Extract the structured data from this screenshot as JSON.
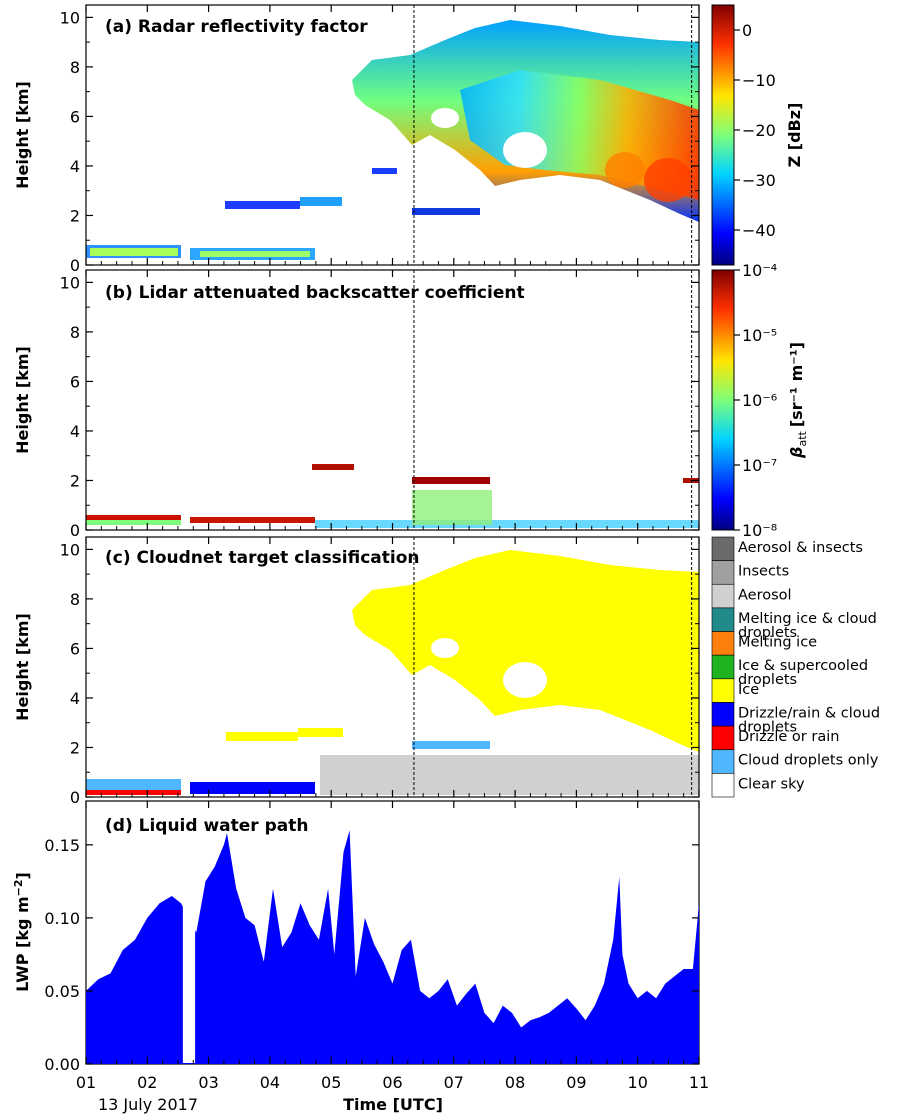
{
  "chart_data": [
    {
      "type": "heatmap",
      "panel_label": "(a) Radar reflectivity factor",
      "ylabel": "Height [km]",
      "ylim": [
        0,
        10.5
      ],
      "yticks": [
        0,
        2,
        4,
        6,
        8,
        10
      ],
      "xlim": [
        1,
        11
      ],
      "colorbar": {
        "label": "Z [dBz]",
        "range": [
          -47,
          5
        ],
        "ticks": [
          0,
          -10,
          -20,
          -30,
          -40
        ],
        "tick_labels": [
          "0",
          "−10",
          "−20",
          "−30",
          "−40"
        ]
      },
      "regions": [
        {
          "name": "low boundary layer cloud",
          "x": [
            1.0,
            3.9
          ],
          "base": 0.3,
          "top": 0.75
        },
        {
          "name": "mid-level cloud",
          "x": [
            2.3,
            4.8
          ],
          "base": 2.0,
          "top": 2.7
        },
        {
          "name": "mid-level cloud",
          "x": [
            6.3,
            7.4
          ],
          "base": 1.9,
          "top": 2.3
        },
        {
          "name": "ice cloud",
          "x": [
            4.75,
            11.0
          ],
          "base": 2.0,
          "top": 9.9
        }
      ]
    },
    {
      "type": "heatmap",
      "panel_label": "(b) Lidar attenuated backscatter coefficient",
      "ylabel": "Height [km]",
      "ylim": [
        0,
        10.5
      ],
      "yticks": [
        0,
        2,
        4,
        6,
        8,
        10
      ],
      "xlim": [
        1,
        11
      ],
      "colorbar": {
        "label_main": "β",
        "label_sub": "att",
        "label_unit": "[sr⁻¹ m⁻¹]",
        "scale": "log",
        "range": [
          1e-08,
          0.0001
        ],
        "tick_labels": [
          "10⁻⁴",
          "10⁻⁵",
          "10⁻⁶",
          "10⁻⁷",
          "10⁻⁸"
        ]
      },
      "regions": [
        {
          "name": "low cloud top",
          "x": [
            1.0,
            3.9
          ],
          "height": 0.5
        },
        {
          "name": "cloud layer",
          "x": [
            4.8,
            5.3
          ],
          "height": 2.5
        },
        {
          "name": "cloud layer",
          "x": [
            6.3,
            7.5
          ],
          "height": 2.05
        },
        {
          "name": "aerosol",
          "x": [
            4.5,
            11.0
          ],
          "base": 0.1,
          "top": 1.5
        }
      ]
    },
    {
      "type": "heatmap",
      "panel_label": "(c) Cloudnet target classification",
      "ylabel": "Height [km]",
      "ylim": [
        0,
        10.5
      ],
      "yticks": [
        0,
        2,
        4,
        6,
        8,
        10
      ],
      "xlim": [
        1,
        11
      ],
      "classes": [
        {
          "label": "Aerosol & insects",
          "color": "#6b6b6b"
        },
        {
          "label": "Insects",
          "color": "#a0a0a0"
        },
        {
          "label": "Aerosol",
          "color": "#d0d0d0"
        },
        {
          "label": "Melting ice & cloud droplets",
          "color": "#208a8a"
        },
        {
          "label": "Melting ice",
          "color": "#ff7f0e"
        },
        {
          "label": "Ice & supercooled droplets",
          "color": "#1fb41f"
        },
        {
          "label": "Ice",
          "color": "#ffff00"
        },
        {
          "label": "Drizzle/rain & cloud droplets",
          "color": "#0000ff"
        },
        {
          "label": "Drizzle or rain",
          "color": "#ff0000"
        },
        {
          "label": "Cloud droplets only",
          "color": "#4fb7ff"
        },
        {
          "label": "Clear sky",
          "color": "#ffffff"
        }
      ]
    },
    {
      "type": "area",
      "panel_label": "(d) Liquid water path",
      "ylabel": "LWP [kg m⁻²]",
      "ylabel_main": "LWP [kg m",
      "ylabel_sup": "−2",
      "ylabel_end": "]",
      "ylim": [
        0,
        0.18
      ],
      "yticks": [
        0.0,
        0.05,
        0.1,
        0.15
      ],
      "ytick_labels": [
        "0.00",
        "0.05",
        "0.10",
        "0.15"
      ],
      "xlim": [
        1,
        11
      ],
      "color": "#0000ff",
      "x": [
        1.0,
        1.2,
        1.4,
        1.6,
        1.8,
        2.0,
        2.2,
        2.4,
        2.55,
        2.8,
        2.95,
        3.1,
        3.25,
        3.3,
        3.45,
        3.6,
        3.75,
        3.9,
        4.05,
        4.2,
        4.35,
        4.5,
        4.65,
        4.8,
        4.95,
        5.05,
        5.2,
        5.3,
        5.4,
        5.55,
        5.7,
        5.85,
        6.0,
        6.15,
        6.3,
        6.45,
        6.6,
        6.75,
        6.9,
        7.05,
        7.2,
        7.35,
        7.5,
        7.65,
        7.8,
        7.95,
        8.1,
        8.25,
        8.4,
        8.55,
        8.7,
        8.85,
        9.0,
        9.15,
        9.3,
        9.45,
        9.6,
        9.7,
        9.75,
        9.85,
        10.0,
        10.15,
        10.3,
        10.45,
        10.6,
        10.75,
        10.9,
        11.0
      ],
      "y": [
        0.05,
        0.058,
        0.062,
        0.078,
        0.085,
        0.1,
        0.11,
        0.115,
        0.11,
        0.09,
        0.125,
        0.135,
        0.15,
        0.158,
        0.12,
        0.1,
        0.095,
        0.07,
        0.12,
        0.08,
        0.09,
        0.11,
        0.095,
        0.085,
        0.12,
        0.075,
        0.145,
        0.16,
        0.06,
        0.1,
        0.082,
        0.07,
        0.055,
        0.078,
        0.085,
        0.05,
        0.045,
        0.05,
        0.058,
        0.04,
        0.048,
        0.055,
        0.035,
        0.028,
        0.04,
        0.035,
        0.025,
        0.03,
        0.032,
        0.035,
        0.04,
        0.045,
        0.038,
        0.03,
        0.04,
        0.055,
        0.085,
        0.128,
        0.075,
        0.055,
        0.045,
        0.05,
        0.045,
        0.055,
        0.06,
        0.065,
        0.065,
        0.11
      ]
    }
  ],
  "xaxis": {
    "label": "Time [UTC]",
    "date_label": "13 July 2017",
    "ticks": [
      1,
      2,
      3,
      4,
      5,
      6,
      7,
      8,
      9,
      10,
      11
    ],
    "tick_labels": [
      "01",
      "02",
      "03",
      "04",
      "05",
      "06",
      "07",
      "08",
      "09",
      "10",
      "11"
    ],
    "markers": [
      6.35,
      10.88
    ]
  }
}
